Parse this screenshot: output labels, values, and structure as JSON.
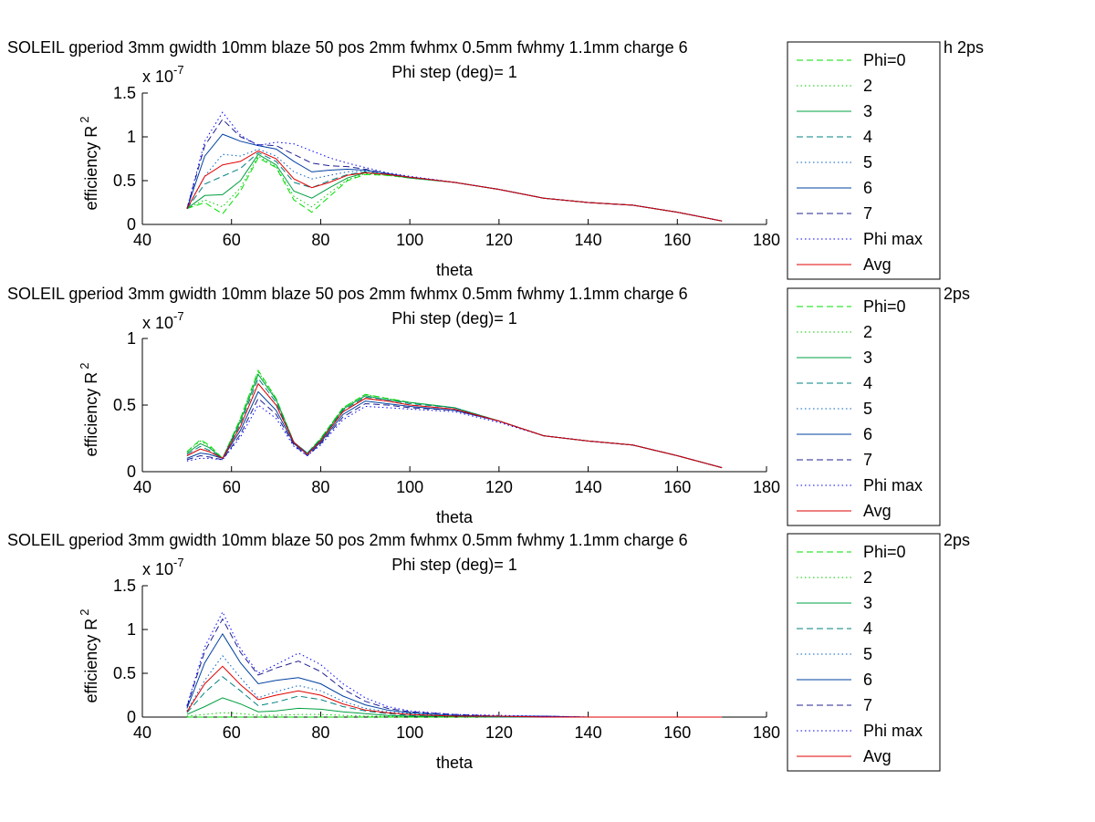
{
  "figure": {
    "background": "#ffffff"
  },
  "legend": {
    "entries": [
      {
        "label": "Phi=0",
        "color": "#00e000",
        "dash": "dashed"
      },
      {
        "label": "2",
        "color": "#00cc00",
        "dash": "dotted"
      },
      {
        "label": "3",
        "color": "#00a040",
        "dash": "solid"
      },
      {
        "label": "4",
        "color": "#008080",
        "dash": "dashed"
      },
      {
        "label": "5",
        "color": "#0060c0",
        "dash": "dotted"
      },
      {
        "label": "6",
        "color": "#0040a0",
        "dash": "solid"
      },
      {
        "label": "7",
        "color": "#202090",
        "dash": "dashed"
      },
      {
        "label": "Phi max",
        "color": "#0000ff",
        "dash": "dotted"
      },
      {
        "label": "Avg",
        "color": "#e00000",
        "dash": "solid"
      }
    ]
  },
  "chart_data": [
    {
      "type": "line",
      "title": "SOLEIL gperiod 3mm gwidth 10mm blaze 50 pos 2mm fwhmx 0.5mm fwhmy 1.1mm charge 6",
      "title_tail": "h 2ps",
      "subtitle": "Phi step (deg)= 1",
      "xlabel": "theta",
      "ylabel": "efficiency R",
      "ylabel_sup": "2",
      "exponent_label": "x 10",
      "exponent_sup": "-7",
      "xlim": [
        40,
        180
      ],
      "ylim": [
        0,
        1.5
      ],
      "xticks": [
        40,
        60,
        80,
        100,
        120,
        140,
        160,
        180
      ],
      "yticks": [
        0,
        0.5,
        1,
        1.5
      ],
      "ytick_labels": [
        "0",
        "0.5",
        "1",
        "1.5"
      ],
      "grid": false,
      "legend_position": "right",
      "x": [
        50,
        54,
        58,
        62,
        66,
        70,
        74,
        78,
        82,
        86,
        90,
        95,
        100,
        110,
        120,
        130,
        140,
        150,
        160,
        170
      ],
      "series": [
        {
          "name": "Phi=0",
          "values": [
            0.18,
            0.25,
            0.12,
            0.38,
            0.76,
            0.65,
            0.28,
            0.14,
            0.32,
            0.5,
            0.57,
            0.56,
            0.53,
            0.48,
            0.4,
            0.3,
            0.25,
            0.22,
            0.14,
            0.04
          ]
        },
        {
          "name": "2",
          "values": [
            0.18,
            0.28,
            0.2,
            0.42,
            0.78,
            0.66,
            0.32,
            0.2,
            0.36,
            0.51,
            0.58,
            0.56,
            0.53,
            0.48,
            0.4,
            0.3,
            0.25,
            0.22,
            0.14,
            0.04
          ]
        },
        {
          "name": "3",
          "values": [
            0.18,
            0.33,
            0.34,
            0.5,
            0.8,
            0.68,
            0.38,
            0.3,
            0.42,
            0.53,
            0.59,
            0.57,
            0.53,
            0.48,
            0.4,
            0.3,
            0.25,
            0.22,
            0.14,
            0.04
          ]
        },
        {
          "name": "4",
          "values": [
            0.18,
            0.46,
            0.55,
            0.64,
            0.82,
            0.72,
            0.48,
            0.42,
            0.5,
            0.57,
            0.6,
            0.57,
            0.54,
            0.48,
            0.4,
            0.3,
            0.25,
            0.22,
            0.14,
            0.04
          ]
        },
        {
          "name": "5",
          "values": [
            0.18,
            0.55,
            0.8,
            0.78,
            0.86,
            0.78,
            0.6,
            0.52,
            0.56,
            0.6,
            0.61,
            0.58,
            0.54,
            0.48,
            0.4,
            0.3,
            0.25,
            0.22,
            0.14,
            0.04
          ]
        },
        {
          "name": "6",
          "values": [
            0.18,
            0.78,
            1.03,
            0.95,
            0.9,
            0.86,
            0.72,
            0.6,
            0.62,
            0.63,
            0.62,
            0.58,
            0.54,
            0.48,
            0.4,
            0.3,
            0.25,
            0.22,
            0.14,
            0.04
          ]
        },
        {
          "name": "7",
          "values": [
            0.18,
            0.9,
            1.2,
            1.0,
            0.91,
            0.9,
            0.8,
            0.7,
            0.67,
            0.66,
            0.63,
            0.58,
            0.54,
            0.48,
            0.4,
            0.3,
            0.25,
            0.22,
            0.14,
            0.04
          ]
        },
        {
          "name": "Phi max",
          "values": [
            0.18,
            0.95,
            1.28,
            1.02,
            0.9,
            0.94,
            0.92,
            0.84,
            0.76,
            0.7,
            0.65,
            0.59,
            0.55,
            0.48,
            0.4,
            0.3,
            0.25,
            0.22,
            0.14,
            0.04
          ]
        },
        {
          "name": "Avg",
          "values": [
            0.18,
            0.55,
            0.68,
            0.72,
            0.84,
            0.75,
            0.52,
            0.42,
            0.48,
            0.56,
            0.59,
            0.57,
            0.54,
            0.48,
            0.4,
            0.3,
            0.25,
            0.22,
            0.14,
            0.04
          ]
        }
      ]
    },
    {
      "type": "line",
      "title": "SOLEIL gperiod 3mm gwidth 10mm blaze 50 pos 2mm fwhmx 0.5mm fwhmy 1.1mm charge 6",
      "title_tail": "2ps",
      "subtitle": "Phi step (deg)= 1",
      "xlabel": "theta",
      "ylabel": "efficiency R",
      "ylabel_sup": "2",
      "exponent_label": "x 10",
      "exponent_sup": "-7",
      "xlim": [
        40,
        180
      ],
      "ylim": [
        0,
        1
      ],
      "xticks": [
        40,
        60,
        80,
        100,
        120,
        140,
        160,
        180
      ],
      "yticks": [
        0,
        0.5,
        1
      ],
      "ytick_labels": [
        "0",
        "0.5",
        "1"
      ],
      "grid": false,
      "legend_position": "right",
      "x": [
        50,
        53,
        55,
        58,
        62,
        66,
        70,
        74,
        77,
        80,
        85,
        90,
        95,
        100,
        110,
        120,
        130,
        140,
        150,
        160,
        170
      ],
      "series": [
        {
          "name": "Phi=0",
          "values": [
            0.15,
            0.24,
            0.2,
            0.1,
            0.4,
            0.76,
            0.55,
            0.22,
            0.14,
            0.25,
            0.48,
            0.58,
            0.55,
            0.52,
            0.48,
            0.38,
            0.27,
            0.23,
            0.2,
            0.12,
            0.03
          ]
        },
        {
          "name": "2",
          "values": [
            0.15,
            0.23,
            0.19,
            0.1,
            0.4,
            0.75,
            0.55,
            0.22,
            0.14,
            0.25,
            0.48,
            0.58,
            0.55,
            0.52,
            0.48,
            0.38,
            0.27,
            0.23,
            0.2,
            0.12,
            0.03
          ]
        },
        {
          "name": "3",
          "values": [
            0.14,
            0.21,
            0.18,
            0.1,
            0.38,
            0.73,
            0.54,
            0.22,
            0.14,
            0.24,
            0.47,
            0.57,
            0.54,
            0.52,
            0.48,
            0.38,
            0.27,
            0.23,
            0.2,
            0.12,
            0.03
          ]
        },
        {
          "name": "4",
          "values": [
            0.13,
            0.19,
            0.16,
            0.1,
            0.36,
            0.7,
            0.52,
            0.22,
            0.14,
            0.24,
            0.46,
            0.56,
            0.54,
            0.51,
            0.48,
            0.38,
            0.27,
            0.23,
            0.2,
            0.12,
            0.03
          ]
        },
        {
          "name": "5",
          "values": [
            0.12,
            0.17,
            0.15,
            0.1,
            0.34,
            0.66,
            0.5,
            0.22,
            0.14,
            0.23,
            0.45,
            0.55,
            0.53,
            0.5,
            0.47,
            0.38,
            0.27,
            0.23,
            0.2,
            0.12,
            0.03
          ]
        },
        {
          "name": "6",
          "values": [
            0.1,
            0.14,
            0.13,
            0.1,
            0.31,
            0.6,
            0.46,
            0.21,
            0.13,
            0.22,
            0.43,
            0.53,
            0.51,
            0.49,
            0.46,
            0.38,
            0.27,
            0.23,
            0.2,
            0.12,
            0.03
          ]
        },
        {
          "name": "7",
          "values": [
            0.09,
            0.12,
            0.11,
            0.09,
            0.28,
            0.55,
            0.43,
            0.2,
            0.12,
            0.21,
            0.41,
            0.51,
            0.5,
            0.48,
            0.46,
            0.38,
            0.27,
            0.23,
            0.2,
            0.12,
            0.03
          ]
        },
        {
          "name": "Phi max",
          "values": [
            0.08,
            0.1,
            0.1,
            0.09,
            0.26,
            0.5,
            0.4,
            0.19,
            0.12,
            0.2,
            0.39,
            0.49,
            0.48,
            0.47,
            0.45,
            0.37,
            0.27,
            0.23,
            0.2,
            0.12,
            0.03
          ]
        },
        {
          "name": "Avg",
          "values": [
            0.12,
            0.17,
            0.15,
            0.1,
            0.34,
            0.66,
            0.5,
            0.22,
            0.13,
            0.23,
            0.45,
            0.55,
            0.53,
            0.5,
            0.47,
            0.38,
            0.27,
            0.23,
            0.2,
            0.12,
            0.03
          ]
        }
      ]
    },
    {
      "type": "line",
      "title": "SOLEIL gperiod 3mm gwidth 10mm blaze 50 pos 2mm fwhmx 0.5mm fwhmy 1.1mm charge 6",
      "title_tail": "2ps",
      "subtitle": "Phi step (deg)= 1",
      "xlabel": "theta",
      "ylabel": "efficiency R",
      "ylabel_sup": "2",
      "exponent_label": "x 10",
      "exponent_sup": "-7",
      "xlim": [
        40,
        180
      ],
      "ylim": [
        0,
        1.5
      ],
      "xticks": [
        40,
        60,
        80,
        100,
        120,
        140,
        160,
        180
      ],
      "yticks": [
        0,
        0.5,
        1,
        1.5
      ],
      "ytick_labels": [
        "0",
        "0.5",
        "1",
        "1.5"
      ],
      "grid": false,
      "legend_position": "right",
      "x": [
        50,
        54,
        58,
        62,
        66,
        70,
        75,
        80,
        85,
        90,
        95,
        100,
        110,
        120,
        130,
        140,
        150,
        160,
        170
      ],
      "series": [
        {
          "name": "Phi=0",
          "values": [
            0.0,
            0.0,
            0.0,
            0.0,
            0.0,
            0.0,
            0.0,
            0.0,
            0.0,
            0.0,
            0.0,
            0.0,
            0.0,
            0.0,
            0.0,
            0.0,
            0.0,
            0.0,
            0.0
          ]
        },
        {
          "name": "2",
          "values": [
            0.01,
            0.03,
            0.05,
            0.04,
            0.02,
            0.02,
            0.03,
            0.03,
            0.02,
            0.01,
            0.01,
            0.01,
            0.0,
            0.0,
            0.0,
            0.0,
            0.0,
            0.0,
            0.0
          ]
        },
        {
          "name": "3",
          "values": [
            0.03,
            0.12,
            0.22,
            0.15,
            0.06,
            0.07,
            0.1,
            0.09,
            0.06,
            0.04,
            0.02,
            0.01,
            0.01,
            0.0,
            0.0,
            0.0,
            0.0,
            0.0,
            0.0
          ]
        },
        {
          "name": "4",
          "values": [
            0.05,
            0.28,
            0.46,
            0.3,
            0.13,
            0.17,
            0.24,
            0.2,
            0.12,
            0.07,
            0.04,
            0.02,
            0.01,
            0.0,
            0.0,
            0.0,
            0.0,
            0.0,
            0.0
          ]
        },
        {
          "name": "5",
          "values": [
            0.07,
            0.42,
            0.7,
            0.45,
            0.22,
            0.29,
            0.36,
            0.3,
            0.18,
            0.1,
            0.06,
            0.04,
            0.02,
            0.01,
            0.0,
            0.0,
            0.0,
            0.0,
            0.0
          ]
        },
        {
          "name": "6",
          "values": [
            0.1,
            0.62,
            0.95,
            0.62,
            0.38,
            0.42,
            0.45,
            0.38,
            0.24,
            0.14,
            0.08,
            0.05,
            0.02,
            0.01,
            0.01,
            0.0,
            0.0,
            0.0,
            0.0
          ]
        },
        {
          "name": "7",
          "values": [
            0.12,
            0.75,
            1.12,
            0.74,
            0.48,
            0.56,
            0.64,
            0.52,
            0.32,
            0.18,
            0.1,
            0.06,
            0.03,
            0.01,
            0.01,
            0.0,
            0.0,
            0.0,
            0.0
          ]
        },
        {
          "name": "Phi max",
          "values": [
            0.13,
            0.8,
            1.2,
            0.78,
            0.5,
            0.6,
            0.73,
            0.6,
            0.38,
            0.22,
            0.12,
            0.07,
            0.03,
            0.02,
            0.01,
            0.0,
            0.0,
            0.0,
            0.0
          ]
        },
        {
          "name": "Avg",
          "values": [
            0.06,
            0.38,
            0.58,
            0.37,
            0.2,
            0.25,
            0.3,
            0.25,
            0.15,
            0.08,
            0.05,
            0.03,
            0.01,
            0.01,
            0.0,
            0.0,
            0.0,
            0.0,
            0.0
          ]
        }
      ]
    }
  ]
}
